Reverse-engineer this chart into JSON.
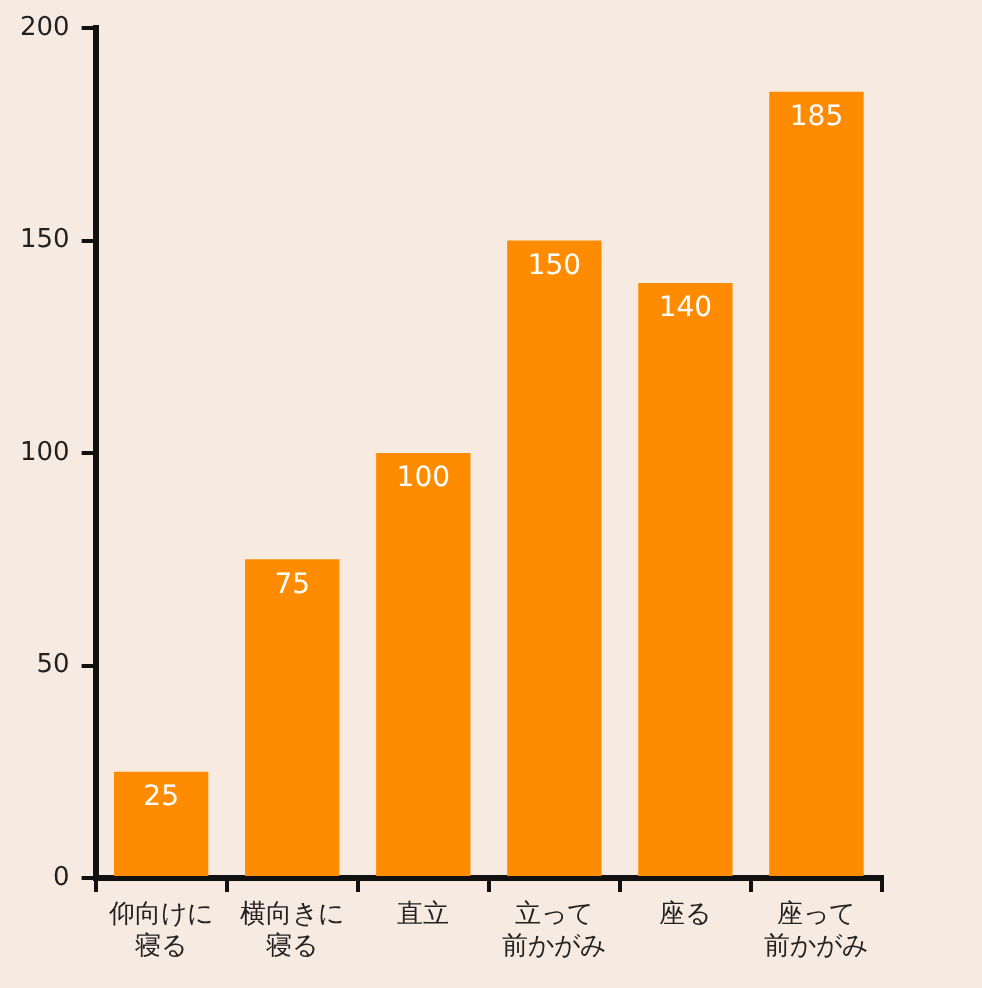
{
  "chart_data": {
    "type": "bar",
    "categories": [
      "仰向けに寝る",
      "横向きに寝る",
      "直立",
      "立って前かがみ",
      "座る",
      "座って前かがみ"
    ],
    "values": [
      25,
      75,
      100,
      150,
      140,
      185
    ],
    "color": "#ff8c00",
    "ylim": [
      0,
      200
    ],
    "yticks": [
      0,
      50,
      100,
      150,
      200
    ],
    "grid": false,
    "legend": false,
    "data_labels": true
  }
}
